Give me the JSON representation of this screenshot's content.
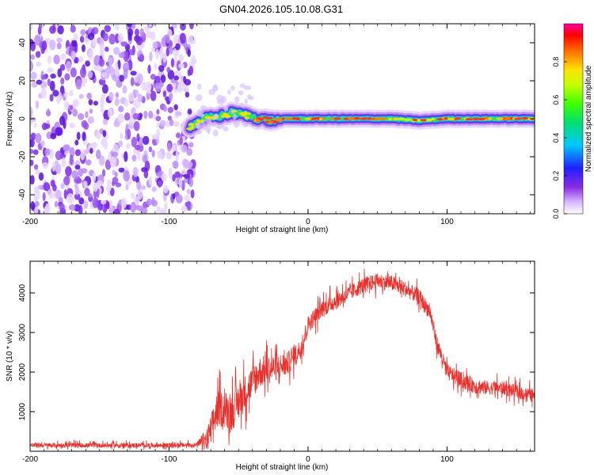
{
  "title": "GN04.2026.105.10.08.G31",
  "colors": {
    "snr_line": "#e8302c",
    "spectro_track_core": "#ff2020",
    "spectro_noise": "#7a2ae6"
  },
  "chart_data": [
    {
      "type": "heatmap",
      "title": "GN04.2026.105.10.08.G31",
      "xlabel": "Height of straight line (km)",
      "ylabel": "Frequency (Hz)",
      "xlim": [
        -200,
        163
      ],
      "ylim": [
        -50,
        50
      ],
      "x_ticks": [
        -200,
        -100,
        0,
        100
      ],
      "x_tick_labels": [
        "-200",
        "-100",
        "0",
        "100"
      ],
      "y_ticks": [
        -40,
        -20,
        0,
        20,
        40
      ],
      "y_tick_labels": [
        "-40",
        "-20",
        "0",
        "20",
        "40"
      ],
      "colorbar": {
        "label": "Normalized spectral amplitude",
        "range": [
          0,
          1
        ],
        "ticks": [
          0,
          0.2,
          0.4,
          0.6,
          0.8
        ],
        "tick_labels": [
          "0.0",
          "0.2",
          "0.4",
          "0.6",
          "0.8"
        ]
      },
      "noise_region_x": [
        -200,
        -82
      ],
      "track": {
        "x": [
          -85,
          -75,
          -65,
          -55,
          -45,
          -35,
          -25,
          -15,
          0,
          20,
          40,
          60,
          80,
          100,
          120,
          140,
          163
        ],
        "frequency": [
          -4,
          0,
          1,
          3,
          2,
          0,
          -1,
          0,
          0,
          0,
          0,
          0,
          -1,
          0,
          0,
          0,
          0
        ]
      }
    },
    {
      "type": "line",
      "xlabel": "Height of straight line (km)",
      "ylabel": "SNR (10 * v/v)",
      "xlim": [
        -200,
        163
      ],
      "ylim": [
        0,
        4800
      ],
      "x_ticks": [
        -200,
        -100,
        0,
        100
      ],
      "x_tick_labels": [
        "-200",
        "-100",
        "0",
        "100"
      ],
      "y_ticks": [
        1000,
        2000,
        3000,
        4000
      ],
      "y_tick_labels": [
        "1000",
        "2000",
        "3000",
        "4000"
      ],
      "series": [
        {
          "name": "SNR",
          "x": [
            -200,
            -150,
            -100,
            -80,
            -72,
            -65,
            -55,
            -45,
            -35,
            -25,
            -15,
            -5,
            0,
            10,
            20,
            30,
            40,
            50,
            60,
            70,
            80,
            88,
            92,
            100,
            110,
            120,
            130,
            140,
            150,
            163
          ],
          "y": [
            150,
            150,
            150,
            160,
            300,
            1100,
            1000,
            1500,
            2000,
            2100,
            2200,
            2600,
            3200,
            3600,
            3800,
            4000,
            4200,
            4300,
            4250,
            4100,
            3900,
            3500,
            2800,
            2000,
            1800,
            1650,
            1600,
            1600,
            1500,
            1400
          ],
          "noise_amplitude": [
            120,
            120,
            120,
            120,
            700,
            900,
            1000,
            900,
            800,
            700,
            600,
            500,
            450,
            450,
            450,
            400,
            400,
            400,
            400,
            400,
            400,
            400,
            400,
            400,
            400,
            400,
            350,
            350,
            350,
            350
          ]
        }
      ]
    }
  ]
}
